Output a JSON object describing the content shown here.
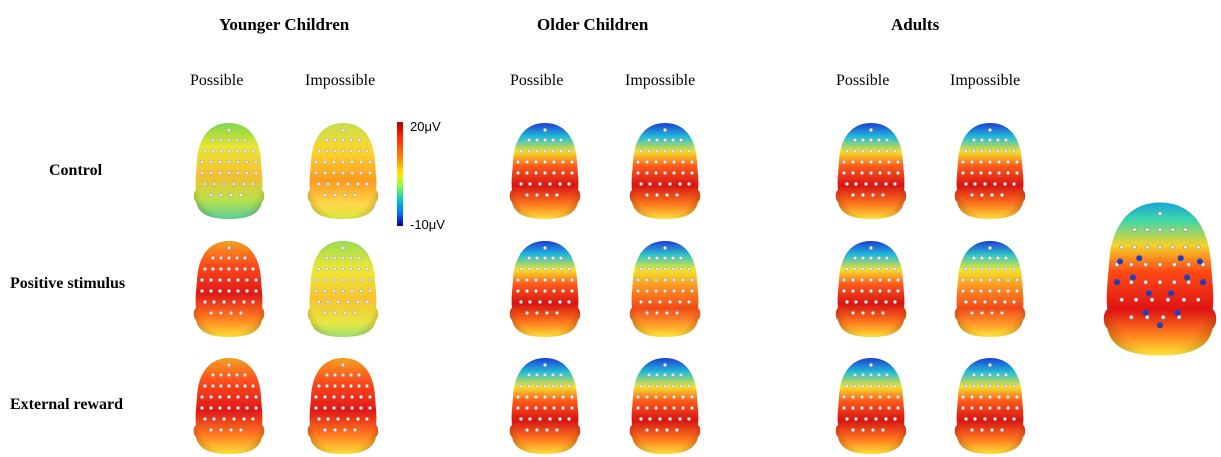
{
  "groups": {
    "younger": "Younger  Children",
    "older": "Older  Children",
    "adults": "Adults"
  },
  "conditions": {
    "possible": "Possible",
    "impossible": "Impossible"
  },
  "rows": {
    "control": "Control",
    "positive": "Positive stimulus",
    "external": "External  reward"
  },
  "colorbar": {
    "max_label": "20μV",
    "min_label": "-10μV",
    "colors": [
      "#b00000",
      "#ff2a00",
      "#ff8c00",
      "#ffe600",
      "#7fff3f",
      "#00c8c8",
      "#0070ff",
      "#00008f"
    ]
  },
  "head_maps": [
    {
      "group": "younger",
      "row": "control",
      "condition": "possible",
      "pattern": "green-yellow"
    },
    {
      "group": "younger",
      "row": "control",
      "condition": "impossible",
      "pattern": "yellow-orange"
    },
    {
      "group": "younger",
      "row": "positive",
      "condition": "possible",
      "pattern": "red-center"
    },
    {
      "group": "younger",
      "row": "positive",
      "condition": "impossible",
      "pattern": "yellow-green"
    },
    {
      "group": "younger",
      "row": "external",
      "condition": "possible",
      "pattern": "red-center"
    },
    {
      "group": "younger",
      "row": "external",
      "condition": "impossible",
      "pattern": "red-center"
    },
    {
      "group": "older",
      "row": "control",
      "condition": "possible",
      "pattern": "blue-top-red"
    },
    {
      "group": "older",
      "row": "control",
      "condition": "impossible",
      "pattern": "blue-top-red"
    },
    {
      "group": "older",
      "row": "positive",
      "condition": "possible",
      "pattern": "blue-top-red"
    },
    {
      "group": "older",
      "row": "positive",
      "condition": "impossible",
      "pattern": "blue-top-orange"
    },
    {
      "group": "older",
      "row": "external",
      "condition": "possible",
      "pattern": "blue-top-red"
    },
    {
      "group": "older",
      "row": "external",
      "condition": "impossible",
      "pattern": "blue-top-red"
    },
    {
      "group": "adults",
      "row": "control",
      "condition": "possible",
      "pattern": "blue-top-red"
    },
    {
      "group": "adults",
      "row": "control",
      "condition": "impossible",
      "pattern": "blue-top-red"
    },
    {
      "group": "adults",
      "row": "positive",
      "condition": "possible",
      "pattern": "blue-top-red"
    },
    {
      "group": "adults",
      "row": "positive",
      "condition": "impossible",
      "pattern": "blue-top-orange"
    },
    {
      "group": "adults",
      "row": "external",
      "condition": "possible",
      "pattern": "blue-top-red"
    },
    {
      "group": "adults",
      "row": "external",
      "condition": "impossible",
      "pattern": "blue-top-red"
    }
  ],
  "large_head": {
    "pattern": "electrode-highlight",
    "highlight_color": "#1f3fbf"
  }
}
